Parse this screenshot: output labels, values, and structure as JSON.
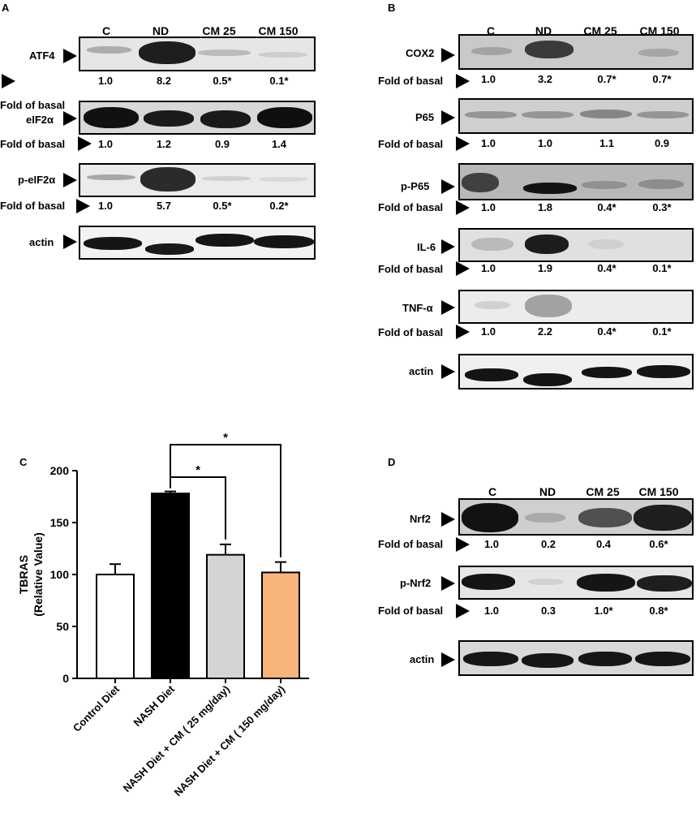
{
  "panels": {
    "A": {
      "letter": "A",
      "lanes": [
        "C",
        "ND",
        "CM 25",
        "CM 150"
      ],
      "blots": [
        {
          "name": "ATF4",
          "fold_label": "Fold of basal",
          "fold": [
            "1.0",
            "8.2",
            "0.5*",
            "0.1*"
          ]
        },
        {
          "name": "eIF2α",
          "fold_label": "Fold of basal",
          "fold": [
            "1.0",
            "1.2",
            "0.9",
            "1.4"
          ]
        },
        {
          "name": "p-eIF2α",
          "fold_label": "Fold of basal",
          "fold": [
            "1.0",
            "5.7",
            "0.5*",
            "0.2*"
          ]
        },
        {
          "name": "actin"
        }
      ]
    },
    "B": {
      "letter": "B",
      "lanes": [
        "C",
        "ND",
        "CM 25",
        "CM 150"
      ],
      "blots": [
        {
          "name": "COX2",
          "fold_label": "Fold of basal",
          "fold": [
            "1.0",
            "3.2",
            "0.7*",
            "0.7*"
          ]
        },
        {
          "name": "P65",
          "fold_label": "Fold of basal",
          "fold": [
            "1.0",
            "1.0",
            "1.1",
            "0.9"
          ]
        },
        {
          "name": "p-P65",
          "fold_label": "Fold of basal",
          "fold": [
            "1.0",
            "1.8",
            "0.4*",
            "0.3*"
          ]
        },
        {
          "name": "IL-6",
          "fold_label": "Fold of basal",
          "fold": [
            "1.0",
            "1.9",
            "0.4*",
            "0.1*"
          ]
        },
        {
          "name": "TNF-α",
          "fold_label": "Fold of basal",
          "fold": [
            "1.0",
            "2.2",
            "0.4*",
            "0.1*"
          ]
        },
        {
          "name": "actin"
        }
      ]
    },
    "C": {
      "letter": "C"
    },
    "D": {
      "letter": "D",
      "lanes": [
        "C",
        "ND",
        "CM 25",
        "CM 150"
      ],
      "blots": [
        {
          "name": "Nrf2",
          "fold_label": "Fold of basal",
          "fold": [
            "1.0",
            "0.2",
            "0.4",
            "0.6*"
          ]
        },
        {
          "name": "p-Nrf2",
          "fold_label": "Fold of basal",
          "fold": [
            "1.0",
            "0.3",
            "1.0*",
            "0.8*"
          ]
        },
        {
          "name": "actin"
        }
      ]
    }
  },
  "chart_data": {
    "type": "bar",
    "title": "",
    "ylabel": "TBRAS\n(Relative Value)",
    "ylabel_lines": [
      "TBRAS",
      "(Relative Value)"
    ],
    "xlabel": "",
    "ylim": [
      0,
      200
    ],
    "yticks": [
      0,
      50,
      100,
      150,
      200
    ],
    "categories": [
      "Control Diet",
      "NASH Diet",
      "NASH Diet + CM ( 25 mg/day)",
      "NASH Diet + CM ( 150 mg/day)"
    ],
    "values": [
      100,
      178,
      119,
      102
    ],
    "errors": [
      10,
      2,
      10,
      10
    ],
    "colors": [
      "#ffffff",
      "#000000",
      "#d4d4d4",
      "#f9b47c"
    ],
    "significance": [
      {
        "from": 1,
        "to": 2,
        "label": "*"
      },
      {
        "from": 1,
        "to": 3,
        "label": "*"
      }
    ],
    "grid": false,
    "legend": "none"
  }
}
